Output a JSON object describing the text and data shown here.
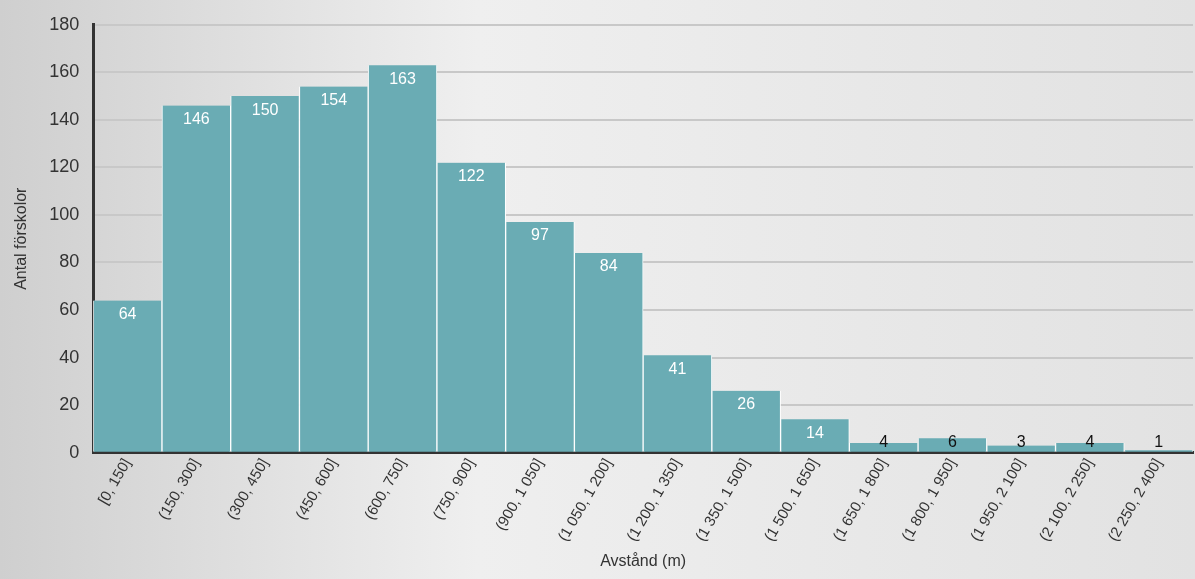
{
  "chart_data": {
    "type": "bar",
    "xlabel": "Avstånd (m)",
    "ylabel": "Antal förskolor",
    "categories": [
      "[0, 150]",
      "(150, 300]",
      "(300, 450]",
      "(450, 600]",
      "(600, 750]",
      "(750, 900]",
      "(900, 1 050]",
      "(1 050, 1 200]",
      "(1 200, 1 350]",
      "(1 350, 1 500]",
      "(1 500, 1 650]",
      "(1 650, 1 800]",
      "(1 800, 1 950]",
      "(1 950, 2 100]",
      "(2 100, 2 250]",
      "(2 250, 2 400]"
    ],
    "values": [
      64,
      146,
      150,
      154,
      163,
      122,
      97,
      84,
      41,
      26,
      14,
      4,
      6,
      3,
      4,
      1
    ],
    "color": "#6aacb4",
    "ylim": [
      0,
      180
    ],
    "yticks": [
      0,
      20,
      40,
      60,
      80,
      100,
      120,
      140,
      160,
      180
    ],
    "grid": "y",
    "data_labels": true,
    "legend": false
  }
}
